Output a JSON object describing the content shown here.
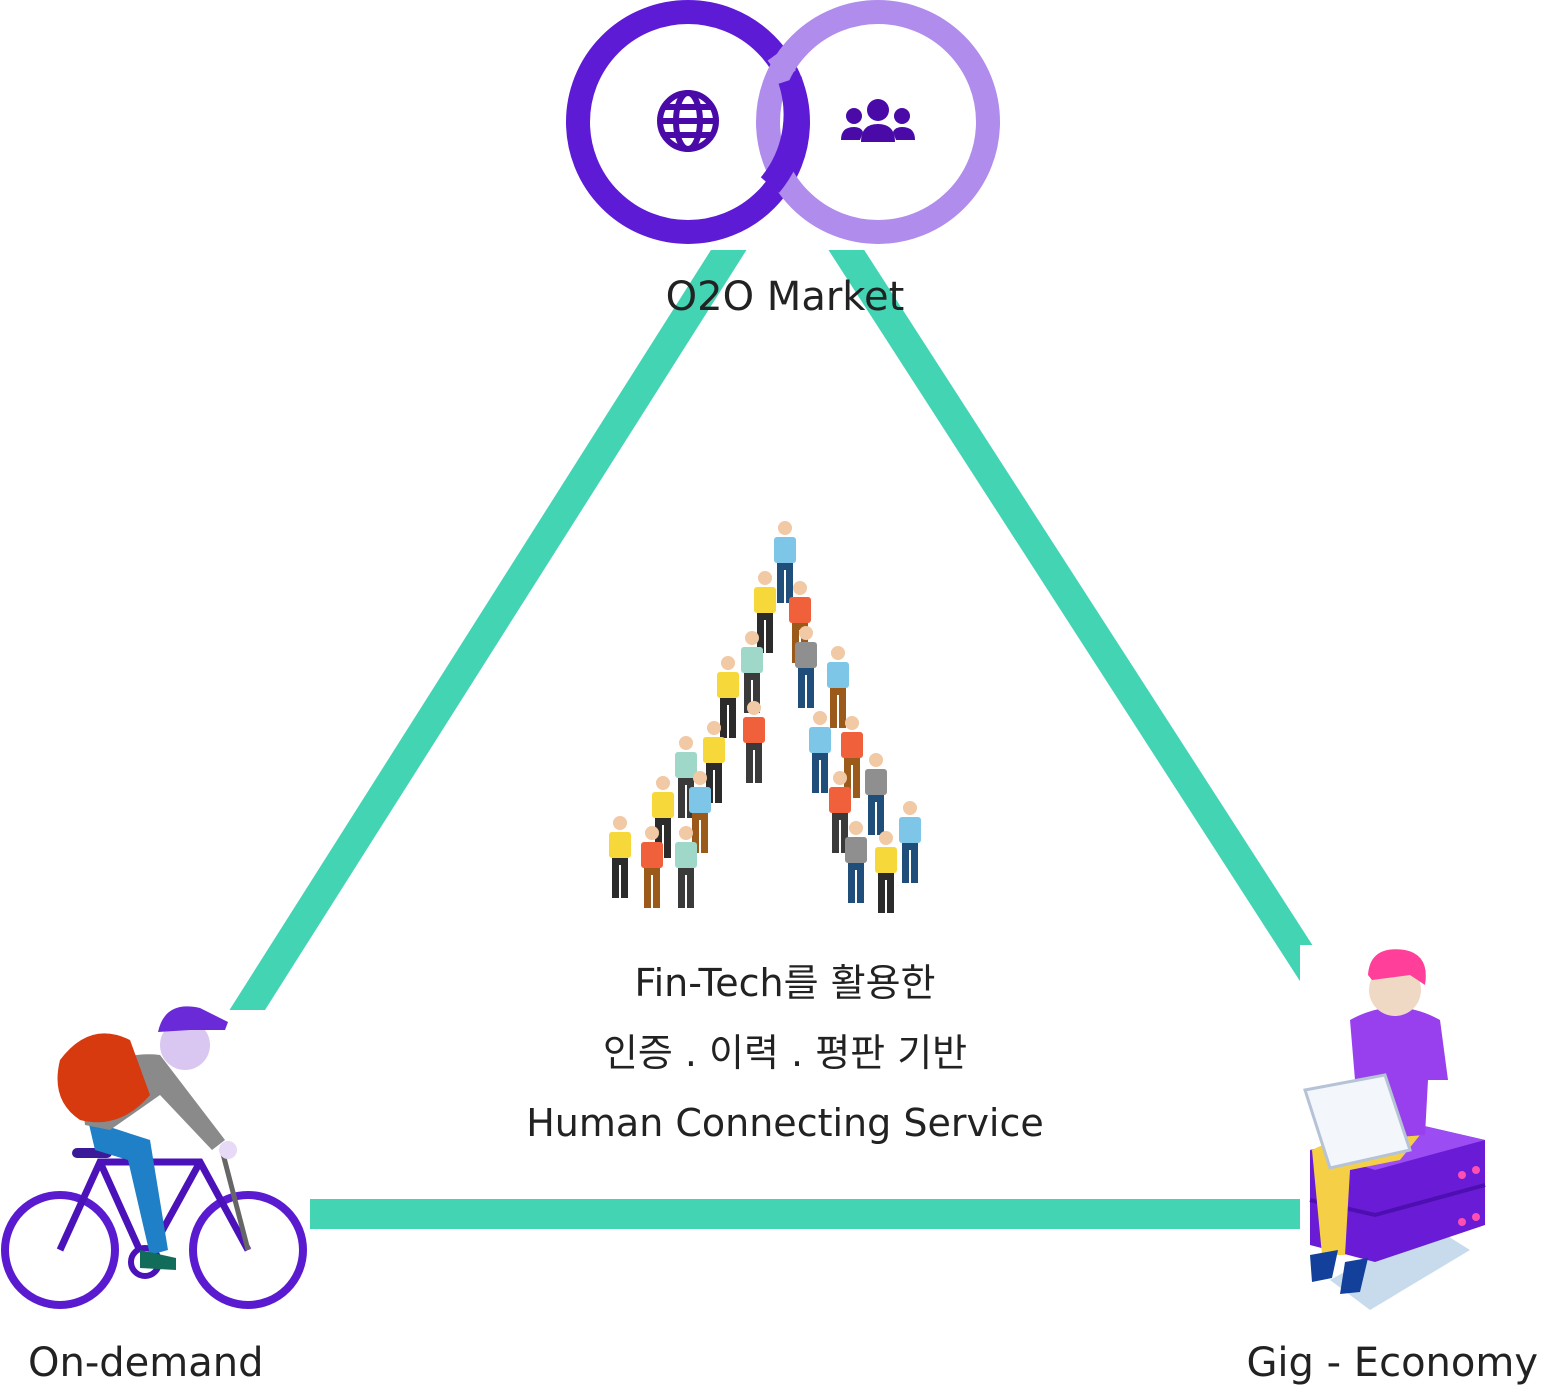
{
  "diagram": {
    "colors": {
      "triangle": "#43d4b4",
      "ring_dark": "#5e1bd6",
      "ring_light": "#b08cec",
      "icon": "#4a0aa8",
      "text": "#222222"
    },
    "nodes": {
      "top": {
        "label": "O2O Market",
        "icons": [
          "globe-icon",
          "people-group-icon"
        ]
      },
      "bottom_left": {
        "label": "On-demand",
        "illustration": "cyclist-courier"
      },
      "bottom_right": {
        "label": "Gig - Economy",
        "illustration": "freelancer-with-laptop"
      }
    },
    "center": {
      "lines": [
        "Fin-Tech를 활용한",
        "인증 . 이력 . 평판 기반",
        "Human Connecting Service"
      ],
      "illustration": "crowd-forming-letter-a"
    }
  }
}
